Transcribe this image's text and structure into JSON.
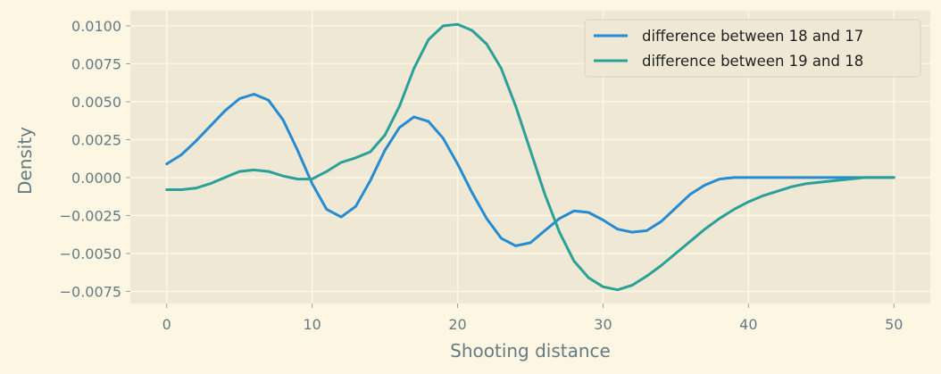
{
  "chart_data": {
    "type": "line",
    "xlabel": "Shooting distance",
    "ylabel": "Density",
    "xlim": [
      -2.5,
      52.5
    ],
    "ylim": [
      -0.0083,
      0.011
    ],
    "xticks": [
      0,
      10,
      20,
      30,
      40,
      50
    ],
    "yticks": [
      -0.0075,
      -0.005,
      -0.0025,
      0.0,
      0.0025,
      0.005,
      0.0075,
      0.01
    ],
    "ytick_labels": [
      "−0.0075",
      "−0.0050",
      "−0.0025",
      "0.0000",
      "0.0025",
      "0.0050",
      "0.0075",
      "0.0100"
    ],
    "grid": true,
    "legend_position": "top-right",
    "colors": {
      "background": "#fdf6e3",
      "plot_bg": "#eee8d5",
      "grid": "#fdf6e3"
    },
    "x": [
      0,
      1,
      2,
      3,
      4,
      5,
      6,
      7,
      8,
      9,
      10,
      11,
      12,
      13,
      14,
      15,
      16,
      17,
      18,
      19,
      20,
      21,
      22,
      23,
      24,
      25,
      26,
      27,
      28,
      29,
      30,
      31,
      32,
      33,
      34,
      35,
      36,
      37,
      38,
      39,
      40,
      41,
      42,
      43,
      44,
      45,
      46,
      47,
      48,
      49,
      50
    ],
    "series": [
      {
        "name": "difference between 18 and 17",
        "color": "#268bd2",
        "values": [
          0.0009,
          0.0015,
          0.0024,
          0.0034,
          0.0044,
          0.0052,
          0.0055,
          0.0051,
          0.0038,
          0.0018,
          -0.0004,
          -0.0021,
          -0.0026,
          -0.0019,
          -0.0002,
          0.0018,
          0.0033,
          0.004,
          0.0037,
          0.0026,
          0.0009,
          -0.001,
          -0.0027,
          -0.004,
          -0.0045,
          -0.0043,
          -0.0035,
          -0.0027,
          -0.0022,
          -0.0023,
          -0.0028,
          -0.0034,
          -0.0036,
          -0.0035,
          -0.0029,
          -0.002,
          -0.0011,
          -0.0005,
          -0.0001,
          0.0,
          0.0,
          0.0,
          0.0,
          0.0,
          0.0,
          0.0,
          0.0,
          0.0,
          0.0,
          0.0,
          0.0
        ]
      },
      {
        "name": "difference between 19 and 18",
        "color": "#2aa198",
        "values": [
          -0.0008,
          -0.0008,
          -0.0007,
          -0.0004,
          0.0,
          0.0004,
          0.0005,
          0.0004,
          0.0001,
          -0.0001,
          -0.0001,
          0.0004,
          0.001,
          0.0013,
          0.0017,
          0.0028,
          0.0047,
          0.0072,
          0.0091,
          0.01,
          0.0101,
          0.0097,
          0.0088,
          0.0072,
          0.0047,
          0.0018,
          -0.0011,
          -0.0036,
          -0.0055,
          -0.0066,
          -0.0072,
          -0.0074,
          -0.0071,
          -0.0065,
          -0.0058,
          -0.005,
          -0.0042,
          -0.0034,
          -0.0027,
          -0.0021,
          -0.0016,
          -0.0012,
          -0.0009,
          -0.0006,
          -0.0004,
          -0.0003,
          -0.0002,
          -0.0001,
          0.0,
          0.0,
          0.0
        ]
      }
    ]
  }
}
